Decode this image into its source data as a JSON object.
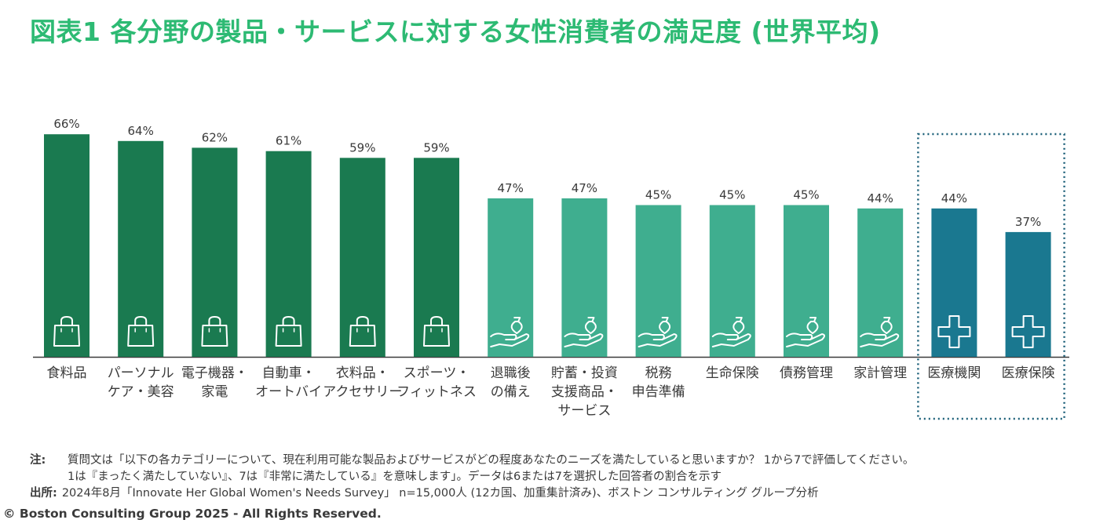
{
  "title": "図表1 各分野の製品・サービスに対する女性消費者の満足度 (世界平均)",
  "colors": {
    "title": "#2dba73",
    "dark_green": "#1a7a50",
    "light_green": "#3fae8f",
    "teal": "#1a7890",
    "axis": "#3a3a3a",
    "highlight_border": "#1a5f78"
  },
  "chart_data": {
    "type": "bar",
    "categories": [
      [
        "食料品"
      ],
      [
        "パーソナル",
        "ケア・美容"
      ],
      [
        "電子機器・",
        "家電"
      ],
      [
        "自動車・",
        "オートバイ"
      ],
      [
        "衣料品・",
        "アクセサリー"
      ],
      [
        "スポーツ・",
        "フィットネス"
      ],
      [
        "退職後",
        "の備え"
      ],
      [
        "貯蓄・投資",
        "支援商品・",
        "サービス"
      ],
      [
        "税務",
        "申告準備"
      ],
      [
        "生命保険"
      ],
      [
        "債務管理"
      ],
      [
        "家計管理"
      ],
      [
        "医療機関"
      ],
      [
        "医療保険"
      ]
    ],
    "values": [
      66,
      64,
      62,
      61,
      59,
      59,
      47,
      47,
      45,
      45,
      45,
      44,
      44,
      37
    ],
    "value_labels": [
      "66%",
      "64%",
      "62%",
      "61%",
      "59%",
      "59%",
      "47%",
      "47%",
      "45%",
      "45%",
      "45%",
      "44%",
      "44%",
      "37%"
    ],
    "groups": [
      "consumer",
      "consumer",
      "consumer",
      "consumer",
      "consumer",
      "consumer",
      "finance",
      "finance",
      "finance",
      "finance",
      "finance",
      "finance",
      "health",
      "health"
    ],
    "group_icons": {
      "consumer": "shopping-bag-icon",
      "finance": "money-bag-hand-icon",
      "health": "medical-cross-icon"
    },
    "highlighted_group": "health",
    "ylim": [
      0,
      70
    ],
    "unit": "%"
  },
  "notes": {
    "note_label": "注:",
    "note_line1": "質問文は「以下の各カテゴリーについて、現在利用可能な製品およびサービスがどの程度あなたのニーズを満たしていると思いますか？ 1から7で評価してください。",
    "note_line2": "1は『まったく満たしていない』、7は『非常に満たしている』を意味します」。データは6または7を選択した回答者の割合を示す",
    "source_label": "出所:",
    "source_text": "2024年8月「Innovate Her Global Women's Needs Survey」 n=15,000人 (12カ国、加重集計済み)、ボストン コンサルティング グループ分析"
  },
  "copyright": "© Boston Consulting Group 2025 - All Rights Reserved."
}
